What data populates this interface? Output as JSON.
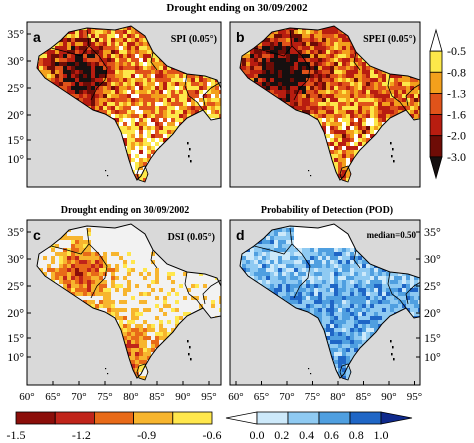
{
  "figure": {
    "title_top": "Drought ending on 30/09/2002",
    "title_bottom_left": "Drought ending on 30/09/2002",
    "title_bottom_right": "Probability of Detection (POD)"
  },
  "panels": [
    {
      "letter": "a",
      "label": "SPI (0.05°)",
      "kind": "drought1"
    },
    {
      "letter": "b",
      "label": "SPEI (0.05°)",
      "kind": "drought2"
    },
    {
      "letter": "c",
      "label": "DSI (0.05°)",
      "kind": "dsi"
    },
    {
      "letter": "d",
      "label": "median=0.50",
      "kind": "pod"
    }
  ],
  "axes": {
    "lat_ticks": [
      "35°",
      "30°",
      "25°",
      "20°",
      "15°",
      "10°"
    ],
    "lon_ticks": [
      "60°",
      "65°",
      "70°",
      "75°",
      "80°",
      "85°",
      "90°",
      "95°"
    ]
  },
  "colorbar_right": {
    "labels": [
      "-0.5",
      "-0.8",
      "-1.3",
      "-1.6",
      "-2.0",
      "-3.0"
    ],
    "colors": [
      "#ffffff",
      "#fde84a",
      "#f3a01c",
      "#e0531a",
      "#b81d10",
      "#6e0c06",
      "#161010"
    ]
  },
  "colorbar_dsi": {
    "labels": [
      "-1.5",
      "-1.2",
      "-0.9",
      "-0.6"
    ],
    "colors": [
      "#8b0e0a",
      "#c0241a",
      "#e86a18",
      "#f7b52e",
      "#ffe74c"
    ]
  },
  "colorbar_pod": {
    "labels": [
      "0.0",
      "0.2",
      "0.4",
      "0.6",
      "0.8",
      "1.0"
    ],
    "colors": [
      "#ffffff",
      "#cde9fa",
      "#8fcaf2",
      "#4f9fe0",
      "#1f66c6",
      "#0f2a8c"
    ]
  },
  "colors": {
    "ocean": "#d9d9d9",
    "pod_land": "#8fc6ec"
  }
}
